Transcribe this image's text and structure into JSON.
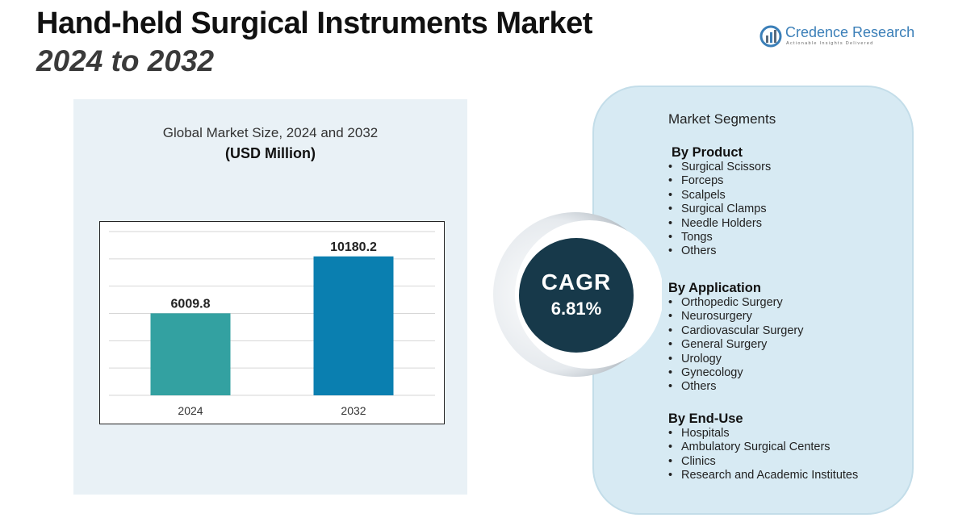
{
  "header": {
    "title": "Hand-held Surgical Instruments Market",
    "subtitle": "2024 to 2032"
  },
  "logo": {
    "name": "Credence Research",
    "tagline": "Actionable Insights Delivered",
    "icon": "bar-chart-globe-icon"
  },
  "chart_data": {
    "type": "bar",
    "title": "Global Market Size, 2024 and 2032",
    "subtitle": "(USD Million)",
    "categories": [
      "2024",
      "2032"
    ],
    "values": [
      6009.8,
      10180.2
    ],
    "value_labels": [
      "6009.8",
      "10180.2"
    ],
    "colors": [
      "#33a1a1",
      "#0a7fb0"
    ],
    "ylim": [
      0,
      12000
    ],
    "grid": true,
    "xlabel": "",
    "ylabel": ""
  },
  "cagr": {
    "label": "CAGR",
    "value": "6.81%",
    "color": "#17394a"
  },
  "segments": {
    "heading": "Market Segments",
    "groups": [
      {
        "title": "By Product",
        "items": [
          "Surgical Scissors",
          "Forceps",
          "Scalpels",
          "Surgical Clamps",
          "Needle Holders",
          "Tongs",
          "Others"
        ]
      },
      {
        "title": "By Application",
        "items": [
          "Orthopedic Surgery",
          "Neurosurgery",
          "Cardiovascular Surgery",
          "General Surgery",
          "Urology",
          "Gynecology",
          "Others"
        ]
      },
      {
        "title": "By End-Use",
        "items": [
          "Hospitals",
          "Ambulatory Surgical Centers",
          "Clinics",
          "Research and Academic Institutes"
        ]
      }
    ]
  }
}
